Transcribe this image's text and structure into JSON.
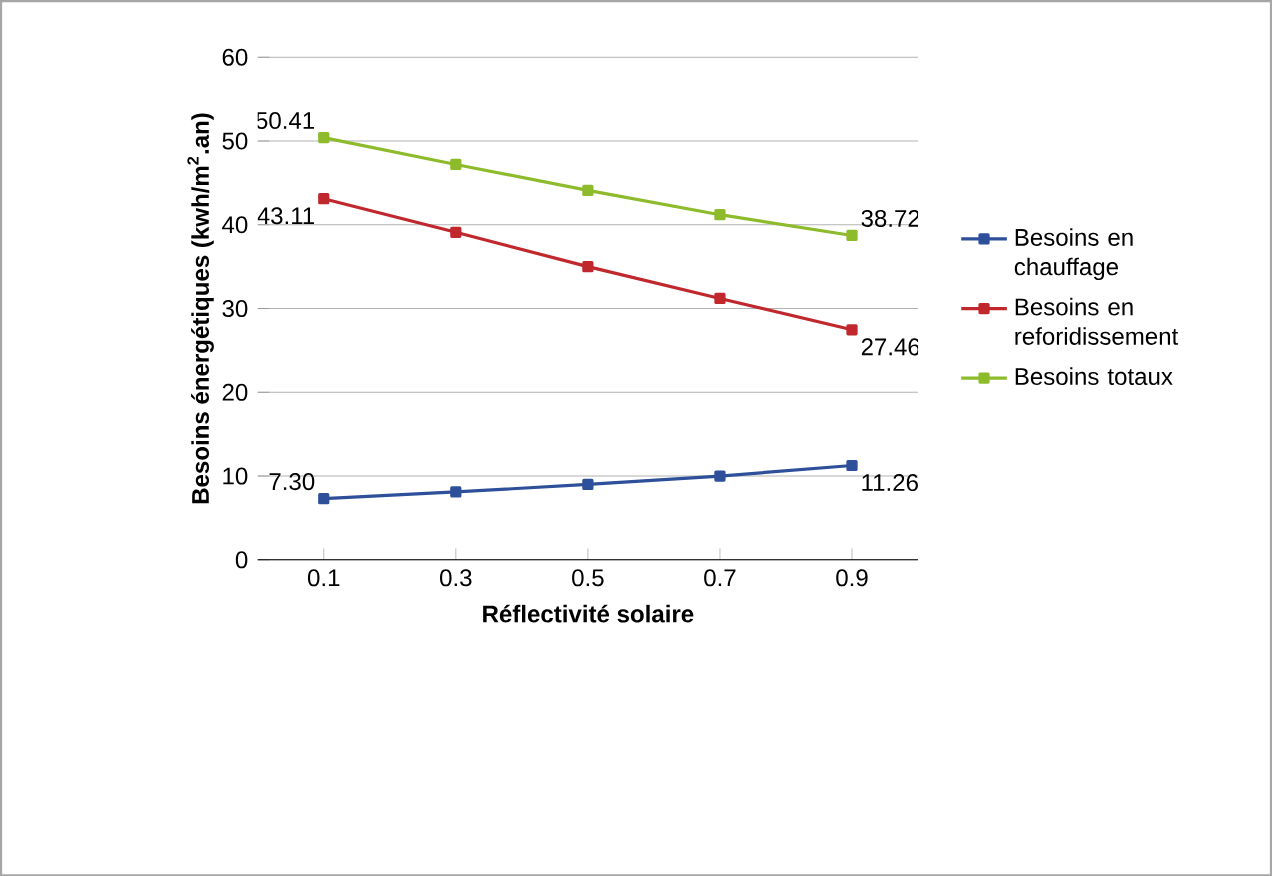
{
  "chart_data": {
    "type": "line",
    "xlabel": "Réflectivité solaire",
    "ylabel": "Besoins énergétiques (kwh/m$^{2}$.an)",
    "categories": [
      "0.1",
      "0.3",
      "0.5",
      "0.7",
      "0.9"
    ],
    "series": [
      {
        "name": "Besoins en chauffage",
        "color": "#2e4f9a",
        "values": [
          7.3,
          8.1,
          9.0,
          10.0,
          11.26
        ],
        "value_labels": [
          "7.30",
          null,
          null,
          null,
          "11.26"
        ]
      },
      {
        "name": "Besoins en reforidissement",
        "color": "#c0282d",
        "values": [
          43.11,
          39.1,
          35.0,
          31.2,
          27.46
        ],
        "value_labels": [
          "43.11",
          null,
          null,
          null,
          "27.46"
        ]
      },
      {
        "name": "Besoins totaux",
        "color": "#8dbb2c",
        "values": [
          50.41,
          47.2,
          44.1,
          41.2,
          38.72
        ],
        "value_labels": [
          "50.41",
          null,
          null,
          null,
          "38.72"
        ]
      }
    ],
    "ylim": [
      0,
      60
    ],
    "yticks": [
      0,
      10,
      20,
      30,
      40,
      50,
      60
    ],
    "grid": "y",
    "legend": "right",
    "marker": "square",
    "line_style": "solid"
  }
}
